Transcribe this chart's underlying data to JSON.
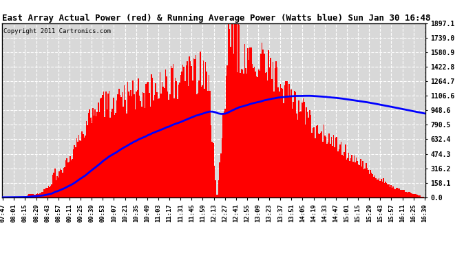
{
  "title": "East Array Actual Power (red) & Running Average Power (Watts blue) Sun Jan 30 16:48",
  "copyright": "Copyright 2011 Cartronics.com",
  "background_color": "#ffffff",
  "plot_bg_color": "#d8d8d8",
  "grid_color": "#ffffff",
  "bar_color": "red",
  "line_color": "blue",
  "yticks": [
    0.0,
    158.1,
    316.2,
    474.3,
    632.4,
    790.5,
    948.6,
    1106.6,
    1264.7,
    1422.8,
    1580.9,
    1739.0,
    1897.1
  ],
  "ymax": 1897.1,
  "xtick_labels": [
    "07:47",
    "08:01",
    "08:15",
    "08:29",
    "08:43",
    "08:57",
    "09:11",
    "09:25",
    "09:39",
    "09:53",
    "10:07",
    "10:21",
    "10:35",
    "10:49",
    "11:03",
    "11:17",
    "11:31",
    "11:45",
    "11:59",
    "12:13",
    "12:27",
    "12:41",
    "12:55",
    "13:09",
    "13:23",
    "13:37",
    "13:51",
    "14:05",
    "14:19",
    "14:33",
    "14:47",
    "15:01",
    "15:15",
    "15:29",
    "15:43",
    "15:57",
    "16:11",
    "16:25",
    "16:39"
  ],
  "n_points": 390
}
